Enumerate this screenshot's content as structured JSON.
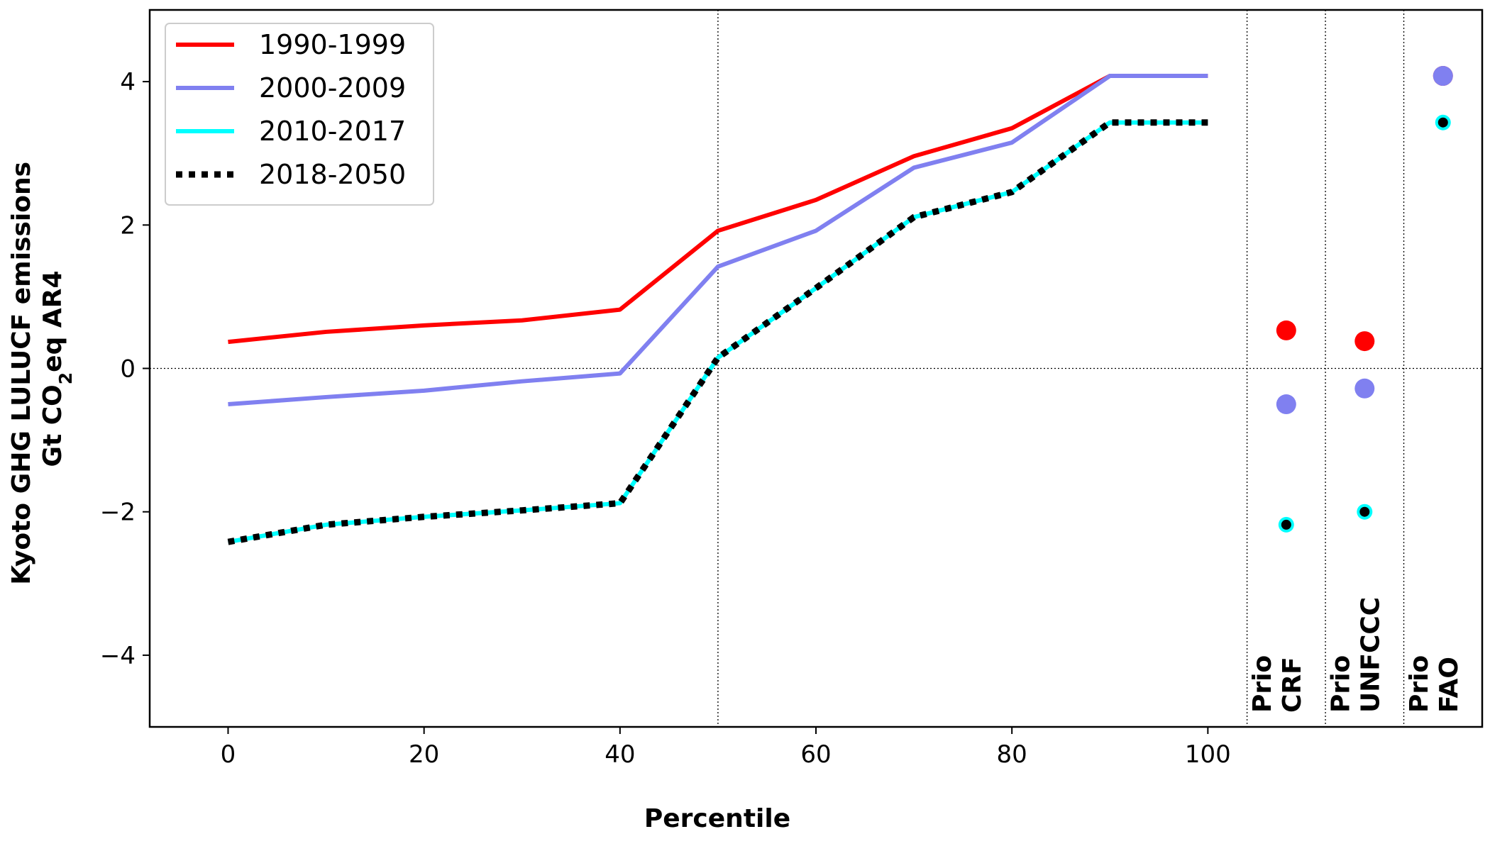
{
  "chart_data": {
    "type": "line",
    "xlabel": "Percentile",
    "ylabel_line1": "Kyoto GHG LULUCF emissions",
    "ylabel_line2_prefix": "Gt CO",
    "ylabel_line2_sub": "2",
    "ylabel_line2_suffix": "eq AR4",
    "xlim": [
      -8,
      128
    ],
    "ylim": [
      -5,
      5
    ],
    "x_ticks": [
      0,
      20,
      40,
      60,
      80,
      100
    ],
    "y_ticks": [
      -4,
      -2,
      0,
      2,
      4
    ],
    "y_tick_labels": [
      "−4",
      "−2",
      "0",
      "2",
      "4"
    ],
    "grid": false,
    "reference_lines": {
      "x": 50,
      "y": 0
    },
    "legend_position": "top-left",
    "x": [
      0,
      10,
      20,
      30,
      40,
      50,
      60,
      70,
      80,
      90,
      100
    ],
    "series": [
      {
        "name": "1990-1999",
        "color": "#ff0000",
        "style": "solid",
        "values": [
          0.37,
          0.51,
          0.6,
          0.67,
          0.82,
          1.92,
          2.35,
          2.96,
          3.35,
          4.08,
          4.08
        ]
      },
      {
        "name": "2000-2009",
        "color": "#8080f0",
        "style": "solid",
        "values": [
          -0.5,
          -0.4,
          -0.31,
          -0.18,
          -0.07,
          1.42,
          1.92,
          2.8,
          3.15,
          4.08,
          4.08
        ]
      },
      {
        "name": "2010-2017",
        "color": "#00ffff",
        "style": "solid",
        "values": [
          -2.42,
          -2.18,
          -2.07,
          -1.98,
          -1.88,
          0.15,
          1.12,
          2.11,
          2.46,
          3.43,
          3.43
        ]
      },
      {
        "name": "2018-2050",
        "color": "#000000",
        "style": "dotted",
        "values": [
          -2.42,
          -2.18,
          -2.07,
          -1.98,
          -1.88,
          0.15,
          1.12,
          2.11,
          2.46,
          3.43,
          3.43
        ]
      }
    ],
    "category_dividers": [
      104,
      112,
      120
    ],
    "categories": [
      {
        "line1": "Prio",
        "line2": "CRF",
        "x": 108,
        "points": [
          {
            "series": "1990-1999",
            "value": 0.53
          },
          {
            "series": "2000-2009",
            "value": -0.5
          },
          {
            "series": "2010-2017",
            "value": -2.18
          }
        ]
      },
      {
        "line1": "Prio",
        "line2": "UNFCCC",
        "x": 116,
        "points": [
          {
            "series": "1990-1999",
            "value": 0.38
          },
          {
            "series": "2000-2009",
            "value": -0.28
          },
          {
            "series": "2010-2017",
            "value": -2.0
          }
        ]
      },
      {
        "line1": "Prio",
        "line2": "FAO",
        "x": 124,
        "points": [
          {
            "series": "1990-1999",
            "value": 4.08
          },
          {
            "series": "2000-2009",
            "value": 4.08
          },
          {
            "series": "2010-2017",
            "value": 3.43
          }
        ]
      }
    ]
  }
}
